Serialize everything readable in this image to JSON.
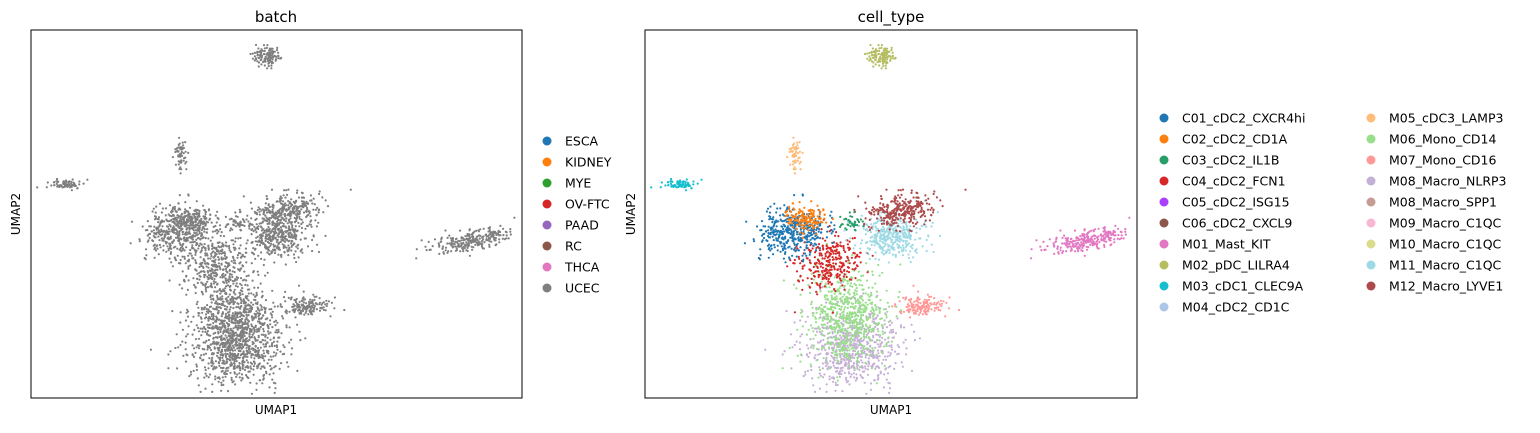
{
  "chart_data": [
    {
      "type": "scatter",
      "title": "batch",
      "xlabel": "UMAP1",
      "ylabel": "UMAP2",
      "grid": false,
      "legend_position": "right",
      "legend": [
        {
          "label": "ESCA",
          "color": "#1f77b4"
        },
        {
          "label": "KIDNEY",
          "color": "#ff7f0e"
        },
        {
          "label": "MYE",
          "color": "#2ca02c"
        },
        {
          "label": "OV-FTC",
          "color": "#d62728"
        },
        {
          "label": "PAAD",
          "color": "#9467bd"
        },
        {
          "label": "RC",
          "color": "#8c564b"
        },
        {
          "label": "THCA",
          "color": "#e377c2"
        },
        {
          "label": "UCEC",
          "color": "#7f7f7f"
        }
      ],
      "point_color": "#7f7f7f",
      "clusters": [
        {
          "name": "M02_pDC_LILRA4",
          "cx": 0.48,
          "cy": 0.07,
          "rx": 0.025,
          "ry": 0.025,
          "n": 120,
          "rot": -30
        },
        {
          "name": "M03_cDC1_CLEC9A",
          "cx": 0.07,
          "cy": 0.42,
          "rx": 0.03,
          "ry": 0.012,
          "n": 80,
          "rot": 0
        },
        {
          "name": "M05_cDC3_LAMP3",
          "cx": 0.305,
          "cy": 0.34,
          "rx": 0.01,
          "ry": 0.04,
          "n": 60,
          "rot": 0
        },
        {
          "name": "M01_Mast_KIT",
          "cx": 0.9,
          "cy": 0.57,
          "rx": 0.08,
          "ry": 0.022,
          "n": 260,
          "rot": -18
        },
        {
          "name": "M07_Mono_CD16",
          "cx": 0.56,
          "cy": 0.75,
          "rx": 0.045,
          "ry": 0.025,
          "n": 150,
          "rot": 0
        },
        {
          "name": "M08_Macro_NLRP3",
          "cx": 0.42,
          "cy": 0.86,
          "rx": 0.085,
          "ry": 0.1,
          "n": 700,
          "rot": 0
        },
        {
          "name": "M06_Mono_CD14",
          "cx": 0.41,
          "cy": 0.78,
          "rx": 0.07,
          "ry": 0.12,
          "n": 650,
          "rot": 0
        },
        {
          "name": "C04_cDC2_FCN1",
          "cx": 0.37,
          "cy": 0.63,
          "rx": 0.06,
          "ry": 0.07,
          "n": 300,
          "rot": 0
        },
        {
          "name": "C01_cDC2_CXCR4hi",
          "cx": 0.3,
          "cy": 0.55,
          "rx": 0.06,
          "ry": 0.06,
          "n": 420,
          "rot": 0
        },
        {
          "name": "C02_cDC2_CD1A",
          "cx": 0.33,
          "cy": 0.51,
          "rx": 0.04,
          "ry": 0.03,
          "n": 150,
          "rot": 0
        },
        {
          "name": "M11_Macro_C1QC",
          "cx": 0.5,
          "cy": 0.56,
          "rx": 0.06,
          "ry": 0.05,
          "n": 380,
          "rot": -10
        },
        {
          "name": "M12_Macro_LYVE1",
          "cx": 0.52,
          "cy": 0.49,
          "rx": 0.06,
          "ry": 0.04,
          "n": 300,
          "rot": -15
        },
        {
          "name": "C03_cDC2_IL1B",
          "cx": 0.42,
          "cy": 0.52,
          "rx": 0.02,
          "ry": 0.02,
          "n": 40,
          "rot": 0
        }
      ]
    },
    {
      "type": "scatter",
      "title": "cell_type",
      "xlabel": "UMAP1",
      "ylabel": "UMAP2",
      "grid": false,
      "legend_position": "right",
      "legend_columns": 2,
      "legend": [
        {
          "label": "C01_cDC2_CXCR4hi",
          "color": "#1f77b4"
        },
        {
          "label": "C02_cDC2_CD1A",
          "color": "#ff7f0e"
        },
        {
          "label": "C03_cDC2_IL1B",
          "color": "#279e68"
        },
        {
          "label": "C04_cDC2_FCN1",
          "color": "#d62728"
        },
        {
          "label": "C05_cDC2_ISG15",
          "color": "#aa40fc"
        },
        {
          "label": "C06_cDC2_CXCL9",
          "color": "#8c564b"
        },
        {
          "label": "M01_Mast_KIT",
          "color": "#e377c2"
        },
        {
          "label": "M02_pDC_LILRA4",
          "color": "#b5bd61"
        },
        {
          "label": "M03_cDC1_CLEC9A",
          "color": "#17becf"
        },
        {
          "label": "M04_cDC2_CD1C",
          "color": "#aec7e8"
        },
        {
          "label": "M05_cDC3_LAMP3",
          "color": "#ffbb78"
        },
        {
          "label": "M06_Mono_CD14",
          "color": "#98df8a"
        },
        {
          "label": "M07_Mono_CD16",
          "color": "#ff9896"
        },
        {
          "label": "M08_Macro_NLRP3",
          "color": "#c5b0d5"
        },
        {
          "label": "M08_Macro_SPP1",
          "color": "#c49c94"
        },
        {
          "label": "M09_Macro_C1QC",
          "color": "#f7b6d2"
        },
        {
          "label": "M10_Macro_C1QC",
          "color": "#dbdb8d"
        },
        {
          "label": "M11_Macro_C1QC",
          "color": "#9edae5"
        },
        {
          "label": "M12_Macro_LYVE1",
          "color": "#ad494a"
        }
      ]
    }
  ]
}
